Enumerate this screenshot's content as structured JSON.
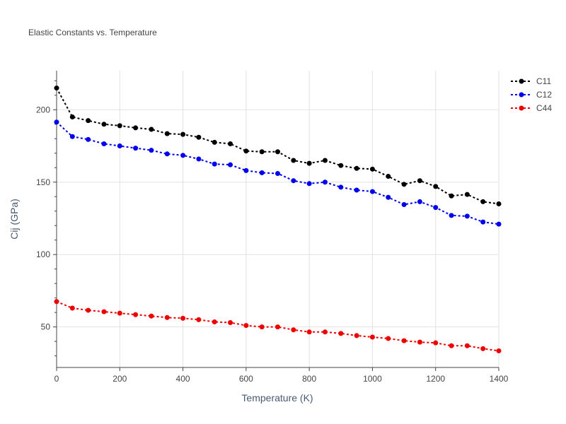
{
  "chart_data": {
    "type": "line",
    "title": "Elastic Constants vs. Temperature",
    "xlabel": "Temperature (K)",
    "ylabel": "Cij (GPa)",
    "xlim": [
      0,
      1400
    ],
    "ylim": [
      22,
      227
    ],
    "x_ticks": [
      0,
      200,
      400,
      600,
      800,
      1000,
      1200,
      1400
    ],
    "y_ticks": [
      50,
      100,
      150,
      200
    ],
    "grid": true,
    "legend_position": "top-right",
    "x": [
      0,
      50,
      100,
      150,
      200,
      250,
      300,
      350,
      400,
      450,
      500,
      550,
      600,
      650,
      700,
      750,
      800,
      850,
      900,
      950,
      1000,
      1050,
      1100,
      1150,
      1200,
      1250,
      1300,
      1350,
      1400
    ],
    "series": [
      {
        "name": "C11",
        "color": "#000000",
        "values": [
          215,
          195,
          192.5,
          190,
          189,
          187.5,
          186.5,
          183.5,
          183,
          181,
          177.5,
          176.5,
          171.5,
          171,
          171,
          165,
          163,
          165,
          161.5,
          159.5,
          159,
          154,
          148.5,
          151,
          147,
          140.5,
          141.5,
          136.5,
          135
        ]
      },
      {
        "name": "C12",
        "color": "#0000ee",
        "values": [
          191.5,
          181.5,
          179.5,
          176.5,
          175,
          173.5,
          172,
          169.5,
          168.5,
          166,
          162.5,
          162,
          158,
          156.5,
          156,
          151,
          149,
          150,
          146.5,
          144.5,
          143.5,
          139.5,
          134.5,
          136.5,
          132.5,
          127,
          126.5,
          122.5,
          121
        ]
      },
      {
        "name": "C44",
        "color": "#ee0000",
        "values": [
          67.5,
          63,
          61.5,
          60.5,
          59.5,
          58.5,
          57.5,
          56.5,
          56,
          55,
          53.5,
          53,
          51,
          50,
          50,
          48,
          46.5,
          46.5,
          45.5,
          44,
          43,
          42,
          40.5,
          39.5,
          39,
          37,
          37,
          35,
          33.5
        ]
      }
    ]
  }
}
